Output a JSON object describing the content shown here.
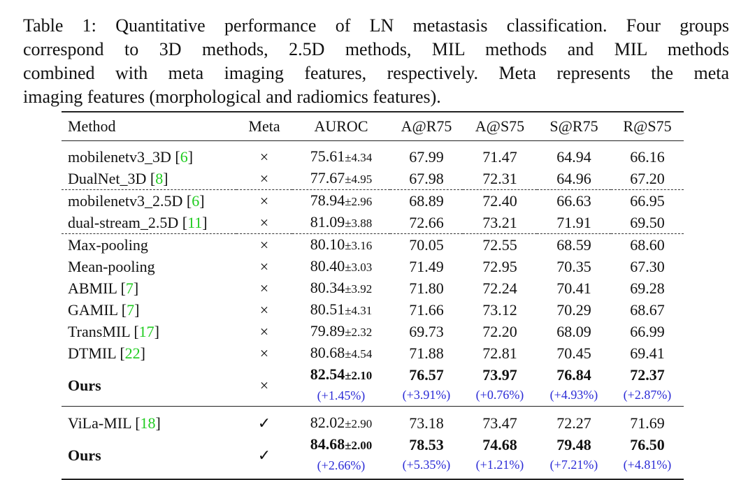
{
  "caption_lines": [
    "Table 1: Quantitative performance of LN metastasis classification. Four groups",
    "correspond to 3D methods, 2.5D methods, MIL methods and MIL methods",
    "combined with meta imaging features, respectively. Meta represents the meta",
    "imaging features (morphological and radiomics features)."
  ],
  "table": {
    "header": [
      "Method",
      "Meta",
      "AUROC",
      "A@R75",
      "A@S75",
      "S@R75",
      "R@S75"
    ],
    "groups": [
      {
        "separator": "dashed",
        "rows": [
          {
            "method": [
              "mobilenetv3_3D [",
              "6",
              "]"
            ],
            "meta": "×",
            "auroc": [
              "75.61",
              "±4.34"
            ],
            "metrics": [
              "67.99",
              "71.47",
              "64.94",
              "66.16"
            ]
          },
          {
            "method": [
              "DualNet_3D [",
              "8",
              "]"
            ],
            "meta": "×",
            "auroc": [
              "77.67",
              "±4.95"
            ],
            "metrics": [
              "67.98",
              "72.31",
              "64.96",
              "67.20"
            ]
          }
        ]
      },
      {
        "separator": "dashed",
        "rows": [
          {
            "method": [
              "mobilenetv3_2.5D [",
              "6",
              "]"
            ],
            "meta": "×",
            "auroc": [
              "78.94",
              "±2.96"
            ],
            "metrics": [
              "68.89",
              "72.40",
              "66.63",
              "66.95"
            ]
          },
          {
            "method": [
              "dual-stream_2.5D [",
              "11",
              "]"
            ],
            "meta": "×",
            "auroc": [
              "81.09",
              "±3.88"
            ],
            "metrics": [
              "72.66",
              "73.21",
              "71.91",
              "69.50"
            ]
          }
        ]
      },
      {
        "separator": "solid",
        "rows": [
          {
            "method": [
              "Max-pooling"
            ],
            "meta": "×",
            "auroc": [
              "80.10",
              "±3.16"
            ],
            "metrics": [
              "70.05",
              "72.55",
              "68.59",
              "68.60"
            ]
          },
          {
            "method": [
              "Mean-pooling"
            ],
            "meta": "×",
            "auroc": [
              "80.40",
              "±3.03"
            ],
            "metrics": [
              "71.49",
              "72.95",
              "70.35",
              "67.30"
            ]
          },
          {
            "method": [
              "ABMIL [",
              "7",
              "]"
            ],
            "meta": "×",
            "auroc": [
              "80.34",
              "±3.92"
            ],
            "metrics": [
              "71.80",
              "72.24",
              "70.41",
              "69.28"
            ]
          },
          {
            "method": [
              "GAMIL [",
              "7",
              "]"
            ],
            "meta": "×",
            "auroc": [
              "80.51",
              "±4.31"
            ],
            "metrics": [
              "71.66",
              "73.12",
              "70.29",
              "68.67"
            ]
          },
          {
            "method": [
              "TransMIL [",
              "17",
              "]"
            ],
            "meta": "×",
            "auroc": [
              "79.89",
              "±2.32"
            ],
            "metrics": [
              "69.73",
              "72.20",
              "68.09",
              "66.99"
            ]
          },
          {
            "method": [
              "DTMIL [",
              "22",
              "]"
            ],
            "meta": "×",
            "auroc": [
              "80.68",
              "±4.54"
            ],
            "metrics": [
              "71.88",
              "72.81",
              "70.45",
              "69.41"
            ]
          },
          {
            "method": [
              "Ours"
            ],
            "meta": "×",
            "auroc": [
              "82.54",
              "±2.10"
            ],
            "metrics": [
              "76.57",
              "73.97",
              "76.84",
              "72.37"
            ],
            "improvements": [
              "(+1.45%)",
              "(+3.91%)",
              "(+0.76%)",
              "(+4.93%)",
              "(+2.87%)"
            ]
          }
        ]
      },
      {
        "rows": [
          {
            "method": [
              "ViLa-MIL [",
              "18",
              "]"
            ],
            "meta": "✓",
            "auroc": [
              "82.02",
              "±2.90"
            ],
            "metrics": [
              "73.18",
              "73.47",
              "72.27",
              "71.69"
            ]
          },
          {
            "method": [
              "Ours"
            ],
            "meta": "✓",
            "auroc": [
              "84.68",
              "±2.00"
            ],
            "metrics": [
              "78.53",
              "74.68",
              "79.48",
              "76.50"
            ],
            "improvements": [
              "(+2.66%)",
              "(+5.35%)",
              "(+1.21%)",
              "(+7.21%)",
              "(+4.81%)"
            ]
          }
        ]
      }
    ]
  }
}
